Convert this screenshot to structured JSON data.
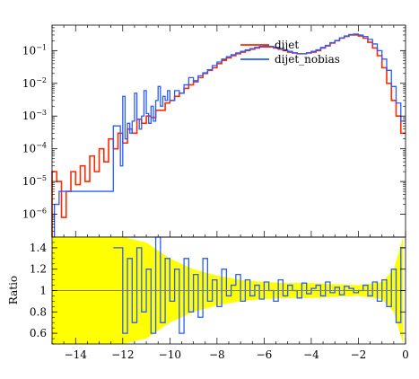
{
  "chart_data": [
    {
      "type": "line",
      "panel": "main",
      "title": "",
      "xlabel": "",
      "ylabel": "",
      "yscale": "log",
      "xlim": [
        -15,
        0
      ],
      "ylim": [
        2e-07,
        0.6
      ],
      "legend_position": "top-right",
      "ytick_values": [
        1e-06,
        1e-05,
        0.0001,
        0.001,
        0.01,
        0.1
      ],
      "ytick_labels": [
        "10^{-6}",
        "10^{-5}",
        "10^{-4}",
        "10^{-3}",
        "10^{-2}",
        "10^{-1}"
      ],
      "ytick_labels_display": [
        {
          "base": "10",
          "exp": "−6"
        },
        {
          "base": "10",
          "exp": "−5"
        },
        {
          "base": "10",
          "exp": "−4"
        },
        {
          "base": "10",
          "exp": "−3"
        },
        {
          "base": "10",
          "exp": "−2"
        },
        {
          "base": "10",
          "exp": "−1"
        }
      ],
      "series": [
        {
          "name": "dijet",
          "color": "#ff2a00",
          "x": [
            -15.0,
            -14.8,
            -14.6,
            -14.4,
            -14.2,
            -14.0,
            -13.8,
            -13.6,
            -13.4,
            -13.2,
            -13.0,
            -12.8,
            -12.6,
            -12.4,
            -12.2,
            -12.0,
            -11.8,
            -11.6,
            -11.4,
            -11.2,
            -11.0,
            -10.8,
            -10.6,
            -10.4,
            -10.2,
            -10.0,
            -9.8,
            -9.6,
            -9.4,
            -9.2,
            -9.0,
            -8.8,
            -8.6,
            -8.4,
            -8.2,
            -8.0,
            -7.8,
            -7.6,
            -7.4,
            -7.2,
            -7.0,
            -6.8,
            -6.6,
            -6.4,
            -6.2,
            -6.0,
            -5.8,
            -5.6,
            -5.4,
            -5.2,
            -5.0,
            -4.8,
            -4.6,
            -4.4,
            -4.2,
            -4.0,
            -3.8,
            -3.6,
            -3.4,
            -3.2,
            -3.0,
            -2.8,
            -2.6,
            -2.4,
            -2.2,
            -2.0,
            -1.8,
            -1.6,
            -1.4,
            -1.2,
            -1.0,
            -0.8,
            -0.6,
            -0.4,
            -0.2
          ],
          "y": [
            2e-05,
            1e-05,
            8e-07,
            5e-06,
            2e-05,
            8e-06,
            3e-05,
            1e-05,
            6e-05,
            2e-05,
            0.0001,
            4e-05,
            0.0002,
            0.0001,
            0.0003,
            0.00015,
            0.0004,
            0.0003,
            0.0008,
            0.0006,
            0.001,
            0.0009,
            0.0015,
            0.0015,
            0.0025,
            0.003,
            0.004,
            0.005,
            0.007,
            0.009,
            0.012,
            0.015,
            0.02,
            0.025,
            0.03,
            0.04,
            0.05,
            0.06,
            0.07,
            0.08,
            0.09,
            0.1,
            0.11,
            0.12,
            0.13,
            0.13,
            0.13,
            0.12,
            0.11,
            0.1,
            0.09,
            0.085,
            0.08,
            0.08,
            0.085,
            0.09,
            0.1,
            0.12,
            0.14,
            0.17,
            0.2,
            0.24,
            0.27,
            0.3,
            0.3,
            0.28,
            0.24,
            0.18,
            0.12,
            0.07,
            0.03,
            0.01,
            0.003,
            0.001,
            0.0003
          ]
        },
        {
          "name": "dijet_nobias",
          "color": "#2a5cff",
          "x": [
            -14.9,
            -14.7,
            -12.4,
            -12.1,
            -12.0,
            -11.9,
            -11.8,
            -11.7,
            -11.6,
            -11.5,
            -11.4,
            -11.3,
            -11.2,
            -11.1,
            -11.0,
            -10.9,
            -10.8,
            -10.7,
            -10.6,
            -10.5,
            -10.4,
            -10.3,
            -10.2,
            -10.1,
            -10.0,
            -9.8,
            -9.6,
            -9.4,
            -9.2,
            -9.0,
            -8.8,
            -8.6,
            -8.4,
            -8.2,
            -8.0,
            -7.8,
            -7.6,
            -7.4,
            -7.2,
            -7.0,
            -6.8,
            -6.6,
            -6.4,
            -6.2,
            -6.0,
            -5.8,
            -5.6,
            -5.4,
            -5.2,
            -5.0,
            -4.8,
            -4.6,
            -4.4,
            -4.2,
            -4.0,
            -3.8,
            -3.6,
            -3.4,
            -3.2,
            -3.0,
            -2.8,
            -2.6,
            -2.4,
            -2.2,
            -2.0,
            -1.8,
            -1.6,
            -1.4,
            -1.2,
            -1.0,
            -0.8,
            -0.6,
            -0.4,
            -0.2
          ],
          "y": [
            2e-06,
            5e-06,
            0.0005,
            3e-05,
            0.004,
            0.0002,
            0.0006,
            0.0003,
            0.0007,
            0.005,
            0.0008,
            0.0004,
            0.001,
            0.006,
            0.0012,
            0.0006,
            0.002,
            0.0007,
            0.003,
            0.008,
            0.002,
            0.004,
            0.003,
            0.006,
            0.003,
            0.006,
            0.005,
            0.009,
            0.015,
            0.011,
            0.017,
            0.021,
            0.026,
            0.035,
            0.045,
            0.055,
            0.065,
            0.075,
            0.085,
            0.095,
            0.105,
            0.115,
            0.125,
            0.135,
            0.14,
            0.135,
            0.125,
            0.115,
            0.105,
            0.095,
            0.085,
            0.08,
            0.08,
            0.085,
            0.095,
            0.105,
            0.125,
            0.145,
            0.175,
            0.205,
            0.245,
            0.28,
            0.31,
            0.32,
            0.3,
            0.27,
            0.22,
            0.16,
            0.1,
            0.055,
            0.025,
            0.008,
            0.0025,
            0.0007
          ]
        }
      ]
    },
    {
      "type": "line",
      "panel": "ratio",
      "title": "",
      "xlabel": "",
      "ylabel": "Ratio",
      "xlim": [
        -15,
        0
      ],
      "ylim": [
        0.5,
        1.5
      ],
      "ytick_labels": [
        "0.6",
        "0.8",
        "1",
        "1.2",
        "1.4"
      ],
      "xtick_labels": [
        "−14",
        "−12",
        "−10",
        "−8",
        "−6",
        "−4",
        "−2",
        "0"
      ],
      "reference_line": 1,
      "uncertainty_band": {
        "color": "#ffff00",
        "x": [
          -15.0,
          -14.0,
          -13.0,
          -12.0,
          -11.0,
          -10.0,
          -9.0,
          -8.0,
          -7.0,
          -6.0,
          -5.0,
          -4.0,
          -3.0,
          -2.0,
          -1.0,
          -0.5,
          -0.1
        ],
        "half_width": [
          0.5,
          0.5,
          0.5,
          0.5,
          0.45,
          0.3,
          0.2,
          0.14,
          0.1,
          0.08,
          0.07,
          0.07,
          0.06,
          0.05,
          0.08,
          0.2,
          0.5
        ]
      },
      "series": [
        {
          "name": "",
          "color": "#2a5cff",
          "x": [
            -12.4,
            -12.0,
            -11.8,
            -11.6,
            -11.4,
            -11.2,
            -11.0,
            -10.8,
            -10.6,
            -10.4,
            -10.2,
            -10.0,
            -9.8,
            -9.6,
            -9.4,
            -9.2,
            -9.0,
            -8.8,
            -8.6,
            -8.4,
            -8.2,
            -8.0,
            -7.8,
            -7.6,
            -7.4,
            -7.2,
            -7.0,
            -6.8,
            -6.6,
            -6.4,
            -6.2,
            -6.0,
            -5.8,
            -5.6,
            -5.4,
            -5.2,
            -5.0,
            -4.8,
            -4.6,
            -4.4,
            -4.2,
            -4.0,
            -3.8,
            -3.6,
            -3.4,
            -3.2,
            -3.0,
            -2.8,
            -2.6,
            -2.4,
            -2.2,
            -2.0,
            -1.8,
            -1.6,
            -1.4,
            -1.2,
            -1.0,
            -0.8,
            -0.6,
            -0.4,
            -0.2
          ],
          "y": [
            1.4,
            0.6,
            1.3,
            0.7,
            1.4,
            0.8,
            1.2,
            0.6,
            1.5,
            0.7,
            1.3,
            0.9,
            1.2,
            0.6,
            1.3,
            0.8,
            1.15,
            0.75,
            1.3,
            0.9,
            1.1,
            0.85,
            1.2,
            0.95,
            1.05,
            1.15,
            0.9,
            1.1,
            0.95,
            1.05,
            0.92,
            1.08,
            1.0,
            0.9,
            1.1,
            0.95,
            1.05,
            1.0,
            0.93,
            1.07,
            0.97,
            1.02,
            1.05,
            0.95,
            1.08,
            0.98,
            1.03,
            0.96,
            1.04,
            1.02,
            0.98,
            1.0,
            1.05,
            0.95,
            1.08,
            0.9,
            1.1,
            0.85,
            1.2,
            0.7,
            1.4
          ]
        }
      ]
    }
  ]
}
